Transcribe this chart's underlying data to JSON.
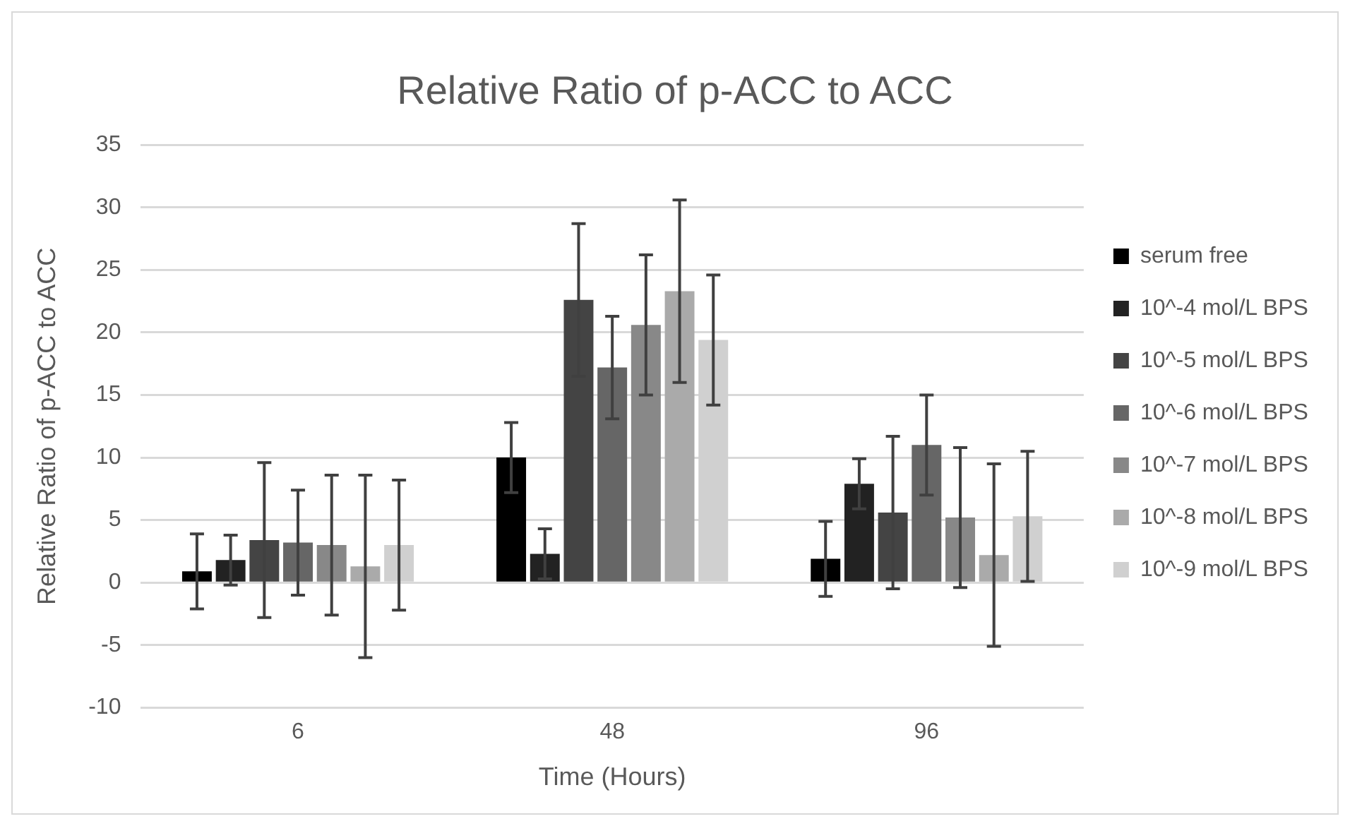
{
  "chart_data": {
    "type": "bar",
    "title": "Relative Ratio of p-ACC to ACC",
    "xlabel": "Time (Hours)",
    "ylabel": "Relative Ratio of p-ACC to ACC",
    "categories": [
      "6",
      "48",
      "96"
    ],
    "series": [
      {
        "name": "serum free",
        "color": "#000000",
        "values": [
          0.9,
          10,
          1.9
        ],
        "errors": [
          3,
          2.8,
          3
        ]
      },
      {
        "name": "10^-4 mol/L BPS",
        "color": "#222222",
        "values": [
          1.8,
          2.3,
          7.9
        ],
        "errors": [
          2,
          2,
          2
        ]
      },
      {
        "name": "10^-5 mol/L BPS",
        "color": "#444444",
        "values": [
          3.4,
          22.6,
          5.6
        ],
        "errors": [
          6.2,
          6.1,
          6.1
        ]
      },
      {
        "name": "10^-6 mol/L BPS",
        "color": "#666666",
        "values": [
          3.2,
          17.2,
          11
        ],
        "errors": [
          4.2,
          4.1,
          4
        ]
      },
      {
        "name": "10^-7 mol/L BPS",
        "color": "#888888",
        "values": [
          3,
          20.6,
          5.2
        ],
        "errors": [
          5.6,
          5.6,
          5.6
        ]
      },
      {
        "name": "10^-8 mol/L BPS",
        "color": "#aaaaaa",
        "values": [
          1.3,
          23.3,
          2.2
        ],
        "errors": [
          7.3,
          7.3,
          7.3
        ]
      },
      {
        "name": "10^-9 mol/L BPS",
        "color": "#d0d0d0",
        "values": [
          3,
          19.4,
          5.3
        ],
        "errors": [
          5.2,
          5.2,
          5.2
        ]
      }
    ],
    "ylim": [
      -10,
      35
    ],
    "yticks": [
      -10,
      -5,
      0,
      5,
      10,
      15,
      20,
      25,
      30,
      35
    ],
    "grid": "y",
    "legend": "right"
  }
}
